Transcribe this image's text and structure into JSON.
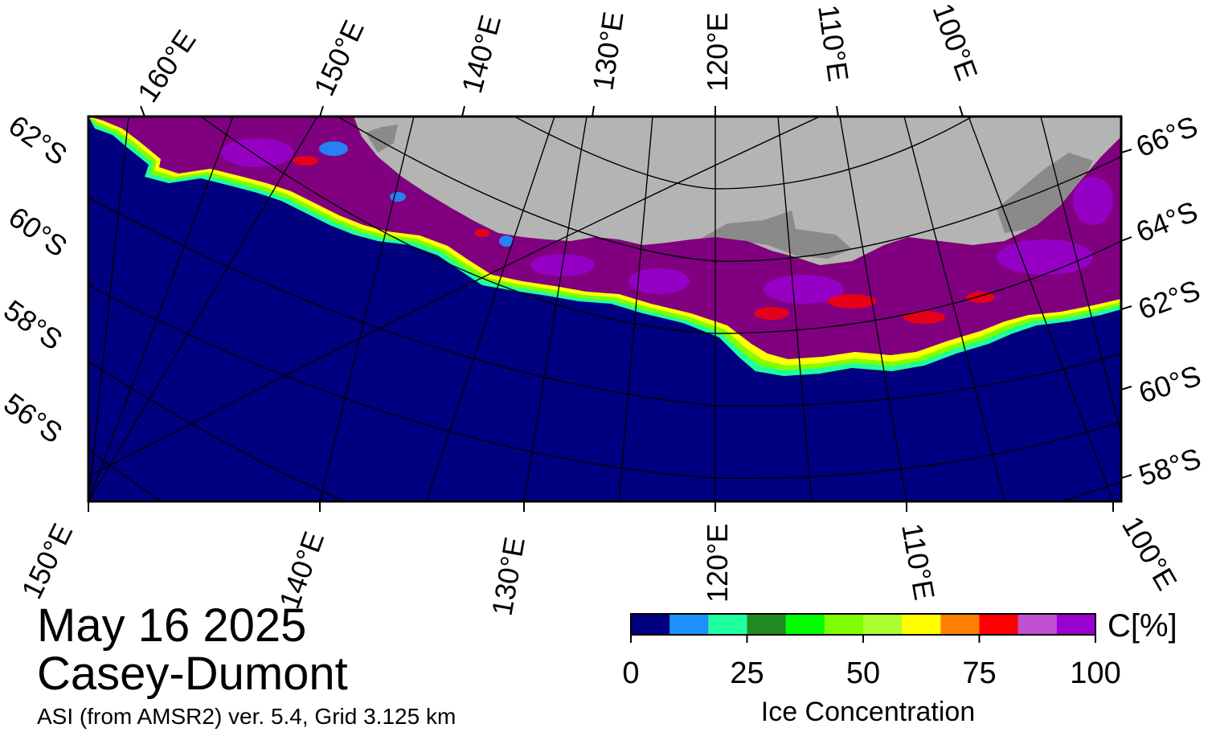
{
  "map": {
    "colors": {
      "ocean": "#000080",
      "land": "#b4b4b4",
      "ice_shelf": "#8a8a8a",
      "ice_core": "#800080",
      "ice_high": "#9a00d0",
      "ice_mid": "#ff0000",
      "ice_edge_yellow": "#ffff00",
      "ice_edge_green": "#7fff00",
      "ice_edge_cyan": "#1effa0"
    },
    "top_longitude_labels": [
      "160°E",
      "150°E",
      "140°E",
      "130°E",
      "120°E",
      "110°E",
      "100°E"
    ],
    "bottom_longitude_labels": [
      "150°E",
      "140°E",
      "130°E",
      "120°E",
      "110°E",
      "100°E"
    ],
    "left_latitude_labels": [
      "62°S",
      "60°S",
      "58°S",
      "56°S"
    ],
    "right_latitude_labels": [
      "66°S",
      "64°S",
      "62°S",
      "60°S",
      "58°S"
    ]
  },
  "info": {
    "date": "May 16 2025",
    "region": "Casey-Dumont",
    "source": "ASI (from AMSR2) ver. 5.4,  Grid 3.125 km"
  },
  "colorbar": {
    "unit": "C[%]",
    "title": "Ice Concentration",
    "ticks": [
      0,
      25,
      50,
      75,
      100
    ],
    "range": [
      0,
      100
    ],
    "colors": [
      "#000080",
      "#1e90ff",
      "#1effa0",
      "#228b22",
      "#00ff00",
      "#7fff00",
      "#adff2f",
      "#ffff00",
      "#ff8000",
      "#ff0000",
      "#c050d0",
      "#9a00d0"
    ]
  }
}
